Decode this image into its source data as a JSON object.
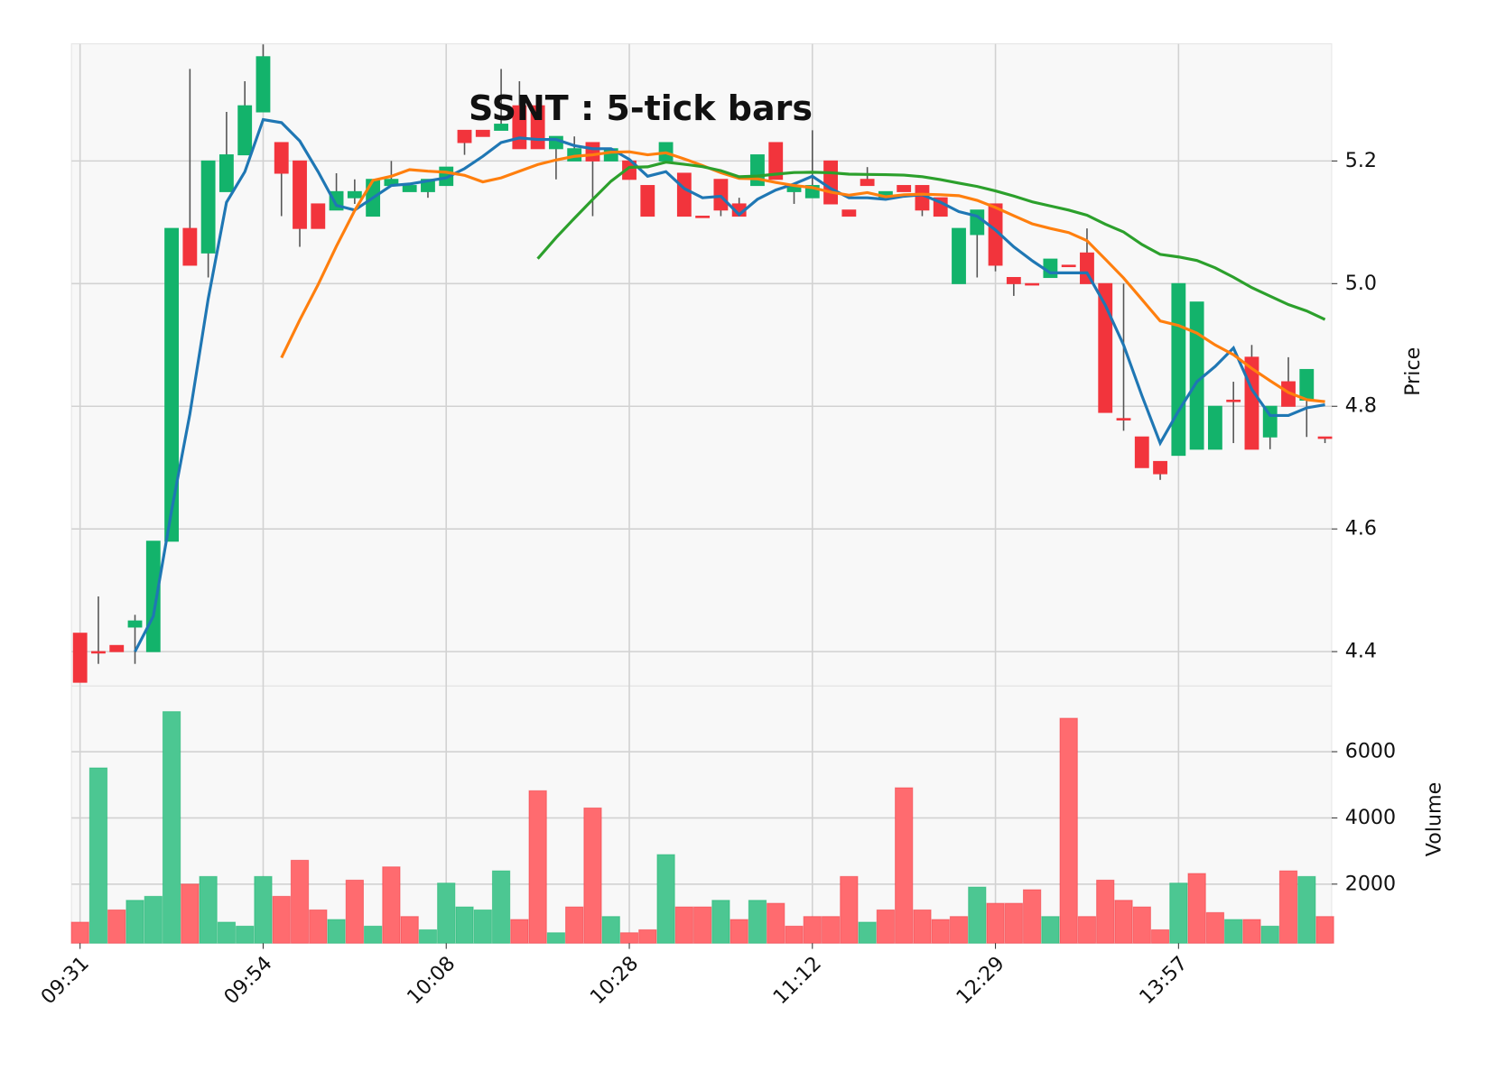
{
  "chart_data": {
    "type": "candlestick",
    "title": "SSNT : 5-tick bars",
    "categories": [
      "09:31",
      null,
      null,
      null,
      null,
      null,
      null,
      null,
      null,
      null,
      "09:54",
      null,
      null,
      null,
      null,
      null,
      null,
      null,
      null,
      null,
      "10:08",
      null,
      null,
      null,
      null,
      null,
      null,
      null,
      null,
      null,
      "10:28",
      null,
      null,
      null,
      null,
      null,
      null,
      null,
      null,
      null,
      "11:12",
      null,
      null,
      null,
      null,
      null,
      null,
      null,
      null,
      null,
      "12:29",
      null,
      null,
      null,
      null,
      null,
      null,
      null,
      null,
      null,
      "13:57",
      null,
      null,
      null,
      null,
      null,
      null,
      null,
      null
    ],
    "open": [
      4.43,
      4.4,
      4.41,
      4.44,
      4.4,
      4.58,
      5.09,
      5.05,
      5.15,
      5.21,
      5.28,
      5.23,
      5.2,
      5.13,
      5.12,
      5.14,
      5.11,
      5.16,
      5.15,
      5.15,
      5.16,
      5.25,
      5.25,
      5.25,
      5.29,
      5.29,
      5.22,
      5.2,
      5.23,
      5.2,
      5.2,
      5.16,
      5.2,
      5.18,
      5.11,
      5.17,
      5.13,
      5.16,
      5.23,
      5.15,
      5.14,
      5.2,
      5.12,
      5.17,
      5.14,
      5.16,
      5.16,
      5.14,
      5.0,
      5.08,
      5.13,
      5.01,
      5.0,
      5.01,
      5.03,
      5.05,
      5.0,
      4.78,
      4.75,
      4.71,
      4.72,
      4.73,
      4.73,
      4.81,
      4.88,
      4.75,
      4.84,
      4.81,
      4.75
    ],
    "high": [
      4.43,
      4.49,
      4.41,
      4.46,
      4.58,
      5.09,
      5.35,
      5.2,
      5.28,
      5.33,
      5.39,
      5.23,
      5.2,
      5.13,
      5.18,
      5.17,
      5.17,
      5.2,
      5.16,
      5.17,
      5.19,
      5.25,
      5.25,
      5.35,
      5.33,
      5.29,
      5.24,
      5.24,
      5.23,
      5.22,
      5.2,
      5.16,
      5.23,
      5.18,
      5.11,
      5.17,
      5.14,
      5.21,
      5.23,
      5.16,
      5.25,
      5.2,
      5.12,
      5.19,
      5.15,
      5.16,
      5.16,
      5.14,
      5.09,
      5.12,
      5.13,
      5.01,
      5.0,
      5.04,
      5.03,
      5.09,
      5.0,
      5.0,
      4.75,
      4.71,
      5.0,
      4.97,
      4.8,
      4.84,
      4.9,
      4.8,
      4.88,
      4.86,
      4.75
    ],
    "low": [
      4.35,
      4.38,
      4.4,
      4.38,
      4.4,
      4.58,
      5.03,
      5.01,
      5.15,
      5.21,
      5.28,
      5.11,
      5.06,
      5.09,
      5.12,
      5.13,
      5.11,
      5.16,
      5.15,
      5.14,
      5.16,
      5.21,
      5.24,
      5.25,
      5.22,
      5.22,
      5.17,
      5.2,
      5.11,
      5.2,
      5.17,
      5.11,
      5.2,
      5.11,
      5.11,
      5.11,
      5.11,
      5.16,
      5.17,
      5.13,
      5.14,
      5.13,
      5.11,
      5.16,
      5.14,
      5.15,
      5.11,
      5.11,
      5.0,
      5.01,
      5.02,
      4.98,
      5.0,
      5.01,
      5.03,
      5.0,
      4.79,
      4.76,
      4.7,
      4.68,
      4.72,
      4.73,
      4.73,
      4.74,
      4.73,
      4.73,
      4.8,
      4.75,
      4.74
    ],
    "close": [
      4.35,
      4.4,
      4.4,
      4.45,
      4.58,
      5.09,
      5.03,
      5.2,
      5.21,
      5.29,
      5.37,
      5.18,
      5.09,
      5.09,
      5.15,
      5.15,
      5.17,
      5.17,
      5.16,
      5.17,
      5.19,
      5.23,
      5.24,
      5.26,
      5.22,
      5.22,
      5.24,
      5.22,
      5.2,
      5.22,
      5.17,
      5.11,
      5.23,
      5.11,
      5.11,
      5.12,
      5.11,
      5.21,
      5.17,
      5.16,
      5.16,
      5.13,
      5.11,
      5.16,
      5.15,
      5.15,
      5.12,
      5.11,
      5.09,
      5.12,
      5.03,
      5.0,
      5.0,
      5.04,
      5.03,
      5.0,
      4.79,
      4.78,
      4.7,
      4.69,
      5.0,
      4.97,
      4.8,
      4.81,
      4.73,
      4.8,
      4.8,
      4.86,
      4.75
    ],
    "volume": [
      850,
      5510,
      1220,
      1510,
      1630,
      7210,
      2000,
      2230,
      850,
      730,
      2230,
      1630,
      2720,
      1220,
      930,
      2120,
      730,
      2520,
      1020,
      620,
      2030,
      1310,
      1220,
      2400,
      930,
      4820,
      530,
      1310,
      4300,
      1020,
      530,
      620,
      2890,
      1310,
      1310,
      1510,
      930,
      1510,
      1420,
      730,
      1020,
      1020,
      2230,
      850,
      1220,
      4910,
      1220,
      930,
      1020,
      1910,
      1420,
      1420,
      1830,
      1020,
      7010,
      1020,
      2120,
      1510,
      1310,
      620,
      2030,
      2320,
      1140,
      930,
      930,
      730,
      2400,
      2230,
      1020
    ],
    "up_color": "#13b36b",
    "down_color": "#f2343c",
    "volume_up_color": "#4cc792",
    "volume_down_color": "#ff6b6f",
    "moving_averages": [
      {
        "window": 4,
        "color": "#1f77b4"
      },
      {
        "window": 12,
        "color": "#ff7f0e"
      },
      {
        "window": 26,
        "color": "#2ca02c"
      }
    ],
    "ylabel": "Price",
    "ylim": [
      4.344,
      5.391
    ],
    "yticks": [
      4.4,
      4.6,
      4.8,
      {
        "value": 5,
        "label": "5.0"
      },
      5.2
    ],
    "volume_label": "Volume",
    "volume_ylim": [
      216,
      7986
    ],
    "volume_yticks": [
      2000,
      4000,
      6000
    ],
    "grid": true
  }
}
